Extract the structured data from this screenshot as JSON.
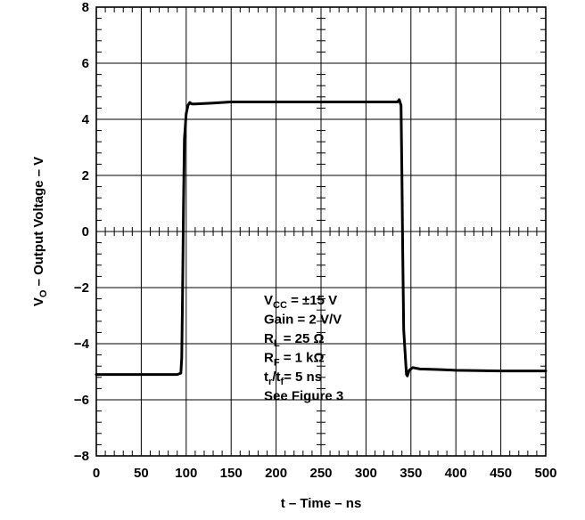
{
  "chart_data": {
    "type": "line",
    "xlabel": "t – Time – ns",
    "ylabel_parts": {
      "main": "V",
      "sub": "O",
      "rest": " – Output Voltage – V"
    },
    "xlim": [
      0,
      500
    ],
    "ylim": [
      -8,
      8
    ],
    "xticks": [
      0,
      50,
      100,
      150,
      200,
      250,
      300,
      350,
      400,
      450,
      500
    ],
    "yticks": [
      -8,
      -6,
      -4,
      -2,
      0,
      2,
      4,
      6,
      8
    ],
    "xtick_labels": [
      "0",
      "50",
      "100",
      "150",
      "200",
      "250",
      "300",
      "350",
      "400",
      "450",
      "500"
    ],
    "ytick_labels": [
      "−8",
      "−6",
      "−4",
      "−2",
      "0",
      "2",
      "4",
      "6",
      "8"
    ],
    "grid": true,
    "series": [
      {
        "x": [
          0,
          90,
          94,
          95,
          96,
          97,
          98,
          100,
          102,
          104,
          106,
          110,
          130,
          150,
          200,
          250,
          300,
          335,
          337,
          339,
          340,
          341,
          342,
          344,
          345,
          346,
          348,
          352,
          360,
          380,
          400,
          450,
          500
        ],
        "y": [
          -5.1,
          -5.1,
          -5.05,
          -4.5,
          -2.0,
          1.0,
          3.3,
          4.2,
          4.5,
          4.6,
          4.55,
          4.55,
          4.58,
          4.62,
          4.62,
          4.62,
          4.62,
          4.62,
          4.7,
          4.5,
          2.0,
          -1.0,
          -3.5,
          -4.6,
          -5.1,
          -5.15,
          -4.95,
          -4.85,
          -4.9,
          -4.92,
          -4.95,
          -4.97,
          -4.97
        ]
      }
    ],
    "annotation": {
      "lines": [
        {
          "main": "V",
          "sub": "CC",
          "rest": " = ±15 V"
        },
        {
          "main": "Gain = 2 V/V",
          "sub": "",
          "rest": ""
        },
        {
          "main": "R",
          "sub": "L",
          "rest": " = 25 Ω"
        },
        {
          "main": "R",
          "sub": "F",
          "rest": " = 1 kΩ"
        },
        {
          "main": "t",
          "sub": "r",
          "rest": "/t",
          "sub2": "f",
          "rest2": "= 5 ns"
        },
        {
          "main": "See Figure 3",
          "sub": "",
          "rest": ""
        }
      ]
    }
  }
}
